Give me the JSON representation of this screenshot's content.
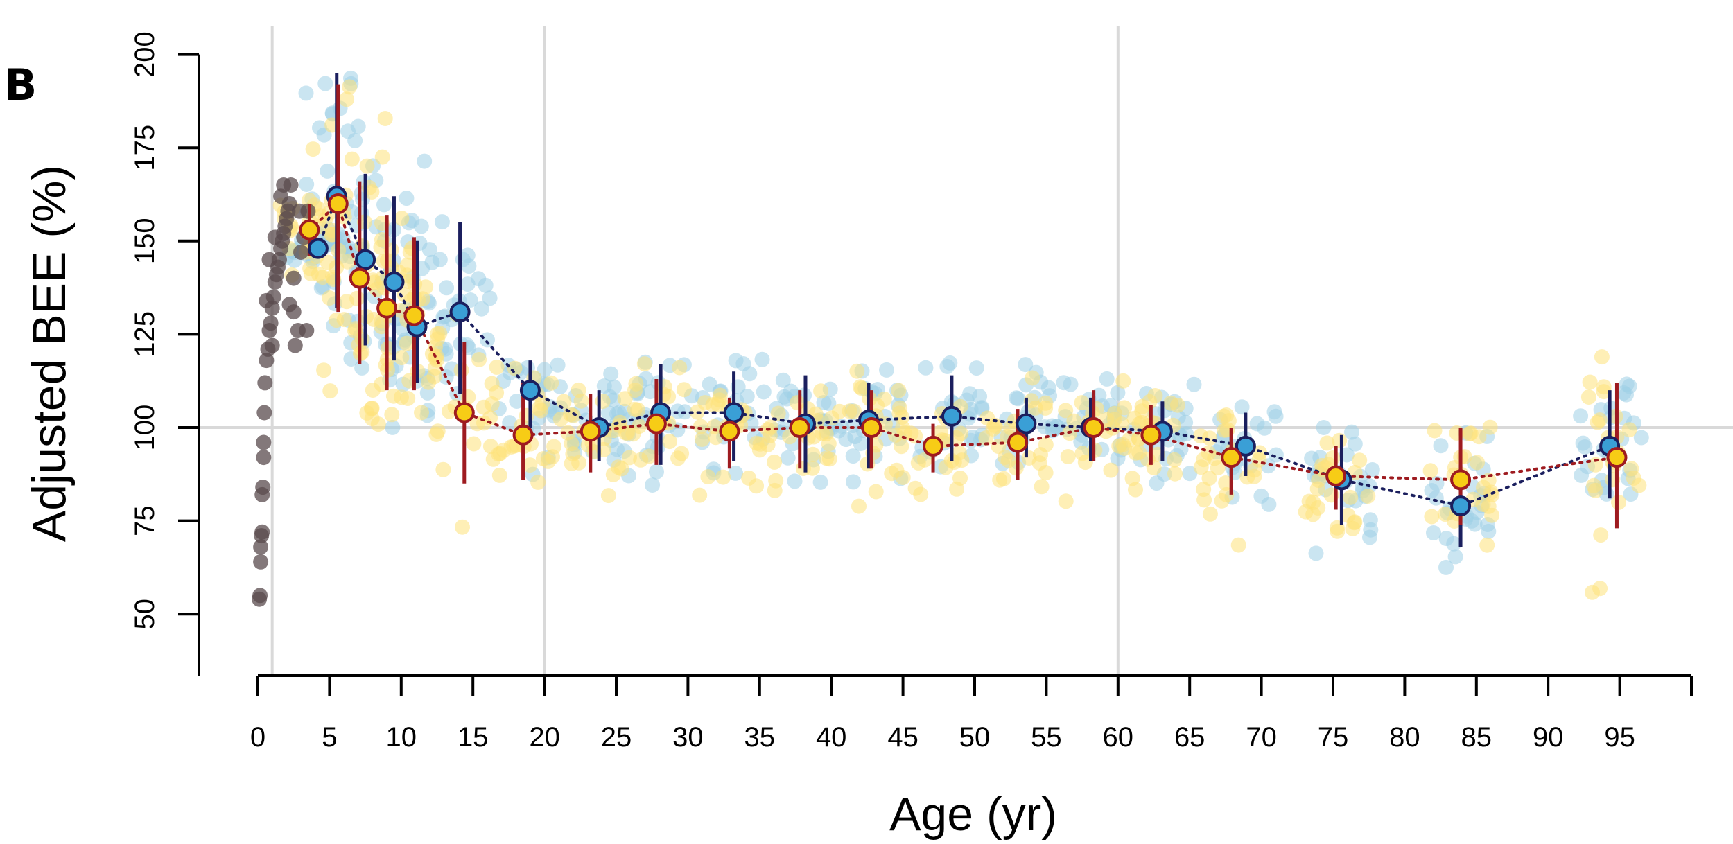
{
  "panel_label": "B",
  "chart_data": {
    "type": "scatter",
    "title": "",
    "xlabel": "Age (yr)",
    "ylabel": "Adjusted BEE (%)",
    "xlim": [
      0,
      100
    ],
    "ylim": [
      33,
      200
    ],
    "x_ticks": [
      0,
      5,
      10,
      15,
      20,
      25,
      30,
      35,
      40,
      45,
      50,
      55,
      60,
      65,
      70,
      75,
      80,
      85,
      90,
      95
    ],
    "x_tick_labels": [
      "0",
      "5",
      "10",
      "15",
      "20",
      "25",
      "30",
      "35",
      "40",
      "45",
      "50",
      "55",
      "60",
      "65",
      "70",
      "75",
      "80",
      "85",
      "90",
      "95"
    ],
    "y_ticks": [
      50,
      75,
      100,
      125,
      150,
      175,
      200
    ],
    "y_tick_labels": [
      "50",
      "75",
      "100",
      "125",
      "150",
      "175",
      "200"
    ],
    "reference_lines": {
      "vertical_x": [
        1,
        20,
        60
      ],
      "horizontal_y": [
        100
      ]
    },
    "grid": false,
    "legend": "none",
    "colors": {
      "infant_points": "#5a4b4e",
      "blue_points": "#9fd0e6",
      "yellow_points": "#fde27a",
      "blue_mean_fill": "#3a9fd6",
      "blue_mean_edge": "#1b1f5e",
      "yellow_mean_fill": "#f7cc16",
      "yellow_mean_edge": "#9e1b20",
      "reference_line": "#d9d9d9"
    },
    "infant_points": [
      [
        0.1,
        54
      ],
      [
        0.15,
        55
      ],
      [
        0.2,
        64
      ],
      [
        0.2,
        68
      ],
      [
        0.25,
        71
      ],
      [
        0.3,
        72
      ],
      [
        0.3,
        82
      ],
      [
        0.35,
        84
      ],
      [
        0.4,
        92
      ],
      [
        0.4,
        96
      ],
      [
        0.45,
        104
      ],
      [
        0.5,
        112
      ],
      [
        0.6,
        118
      ],
      [
        0.7,
        121
      ],
      [
        0.8,
        126
      ],
      [
        0.9,
        128
      ],
      [
        1.0,
        132
      ],
      [
        1.1,
        135
      ],
      [
        1.2,
        139
      ],
      [
        1.3,
        141
      ],
      [
        1.4,
        143
      ],
      [
        1.5,
        145
      ],
      [
        1.6,
        148
      ],
      [
        1.7,
        150
      ],
      [
        1.8,
        152
      ],
      [
        1.9,
        154
      ],
      [
        2.0,
        156
      ],
      [
        2.1,
        158
      ],
      [
        2.2,
        160
      ],
      [
        2.3,
        165
      ],
      [
        2.5,
        131
      ],
      [
        2.6,
        122
      ],
      [
        2.8,
        126
      ],
      [
        3.0,
        147
      ],
      [
        3.2,
        151
      ],
      [
        3.5,
        158
      ],
      [
        0.8,
        145
      ],
      [
        1.2,
        151
      ],
      [
        1.6,
        162
      ],
      [
        0.6,
        134
      ],
      [
        1.0,
        122
      ],
      [
        2.2,
        133
      ],
      [
        2.5,
        140
      ],
      [
        3.4,
        126
      ],
      [
        2.9,
        158
      ],
      [
        1.8,
        165
      ]
    ],
    "series": [
      {
        "color_role": "blue",
        "x": [
          4.2,
          5.5,
          7.5,
          9.5,
          11.1,
          14.1,
          19.0,
          23.8,
          28.1,
          33.2,
          38.2,
          42.6,
          48.4,
          53.6,
          58.1,
          63.1,
          68.9,
          75.6,
          83.9,
          94.3
        ],
        "y": [
          148,
          162,
          145,
          139,
          127,
          131,
          110,
          100,
          104,
          104,
          101,
          102,
          103,
          101,
          100,
          99,
          95,
          86,
          79,
          95
        ],
        "err_low": [
          148,
          132,
          122,
          118,
          112,
          109,
          100,
          91,
          90,
          91,
          88,
          89,
          91,
          92,
          91,
          91,
          87,
          74,
          68,
          81
        ],
        "err_high": [
          148,
          195,
          168,
          162,
          150,
          155,
          118,
          110,
          117,
          115,
          114,
          112,
          114,
          108,
          108,
          107,
          104,
          98,
          90,
          110
        ]
      },
      {
        "color_role": "yellow",
        "x": [
          3.6,
          5.6,
          7.1,
          9.0,
          10.9,
          14.4,
          18.5,
          23.2,
          27.8,
          32.9,
          37.8,
          42.8,
          47.1,
          53.0,
          58.3,
          62.3,
          67.9,
          75.2,
          83.9,
          94.8
        ],
        "y": [
          153,
          160,
          140,
          132,
          130,
          104,
          98,
          99,
          101,
          99,
          100,
          100,
          95,
          96,
          100,
          98,
          92,
          87,
          86,
          92
        ],
        "err_low": [
          146,
          131,
          117,
          110,
          110,
          85,
          86,
          88,
          90,
          89,
          89,
          89,
          88,
          86,
          91,
          90,
          82,
          78,
          74,
          73
        ],
        "err_high": [
          160,
          192,
          166,
          157,
          151,
          123,
          112,
          109,
          113,
          108,
          110,
          110,
          101,
          105,
          110,
          106,
          100,
          95,
          100,
          112
        ]
      }
    ]
  }
}
